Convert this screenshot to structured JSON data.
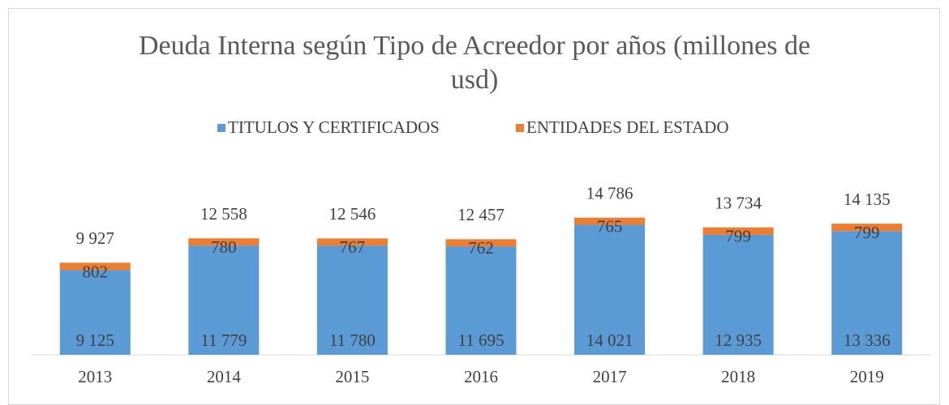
{
  "chart_data": {
    "type": "stacked_bar",
    "title": "Deuda Interna según Tipo de Acreedor por años (millones de usd)",
    "categories": [
      "2013",
      "2014",
      "2015",
      "2016",
      "2017",
      "2018",
      "2019"
    ],
    "series": [
      {
        "name": "TITULOS Y CERTIFICADOS",
        "color": "#5b9bd5",
        "values": [
          9125,
          11779,
          11780,
          11695,
          14021,
          12935,
          13336
        ],
        "value_labels": [
          "9 125",
          "11 779",
          "11 780",
          "11 695",
          "14 021",
          "12 935",
          "13 336"
        ]
      },
      {
        "name": "ENTIDADES DEL ESTADO",
        "color": "#ed7d31",
        "values": [
          802,
          780,
          767,
          762,
          765,
          799,
          799
        ]
      }
    ],
    "totals": [
      9927,
      12558,
      12546,
      12457,
      14786,
      13734,
      14135
    ],
    "total_labels": [
      "9 927",
      "12 558",
      "12 546",
      "12 457",
      "14 786",
      "13 734",
      "14 135"
    ],
    "ylim": [
      0,
      20000
    ],
    "legend": "top"
  }
}
